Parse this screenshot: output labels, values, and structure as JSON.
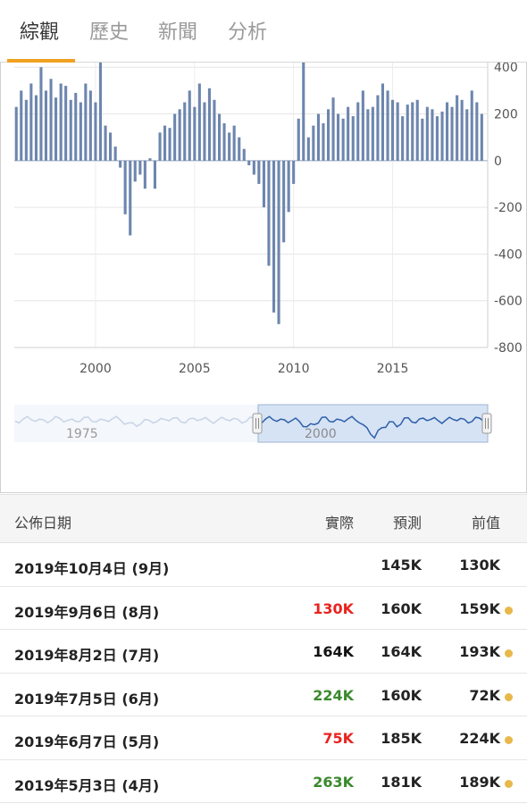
{
  "tabs": [
    "綜觀",
    "歷史",
    "新聞",
    "分析"
  ],
  "colors": {
    "accent": "#f0a020",
    "bar": "#6d86ae",
    "red": "#e8231f",
    "green": "#3a8a2c",
    "dot": "#e8b84a"
  },
  "chart_data": {
    "type": "bar",
    "yaxis_ticks": [
      "400",
      "200",
      "0",
      "-200",
      "-400",
      "-600",
      "-800"
    ],
    "ylim": [
      -800,
      420
    ],
    "xaxis_ticks": [
      "2000",
      "2005",
      "2010",
      "2015"
    ],
    "xlim": [
      1995.9,
      2019.8
    ],
    "navigator_labels": [
      "1975",
      "2000"
    ],
    "series": [
      {
        "x": [
          1996.0,
          1996.25,
          1996.5,
          1996.75,
          1997.0,
          1997.25,
          1997.5,
          1997.75,
          1998.0,
          1998.25,
          1998.5,
          1998.75,
          1999.0,
          1999.25,
          1999.5,
          1999.75,
          2000.0,
          2000.25,
          2000.5,
          2000.75,
          2001.0,
          2001.25,
          2001.5,
          2001.75,
          2002.0,
          2002.25,
          2002.5,
          2002.75,
          2003.0,
          2003.25,
          2003.5,
          2003.75,
          2004.0,
          2004.25,
          2004.5,
          2004.75,
          2005.0,
          2005.25,
          2005.5,
          2005.75,
          2006.0,
          2006.25,
          2006.5,
          2006.75,
          2007.0,
          2007.25,
          2007.5,
          2007.75,
          2008.0,
          2008.25,
          2008.5,
          2008.75,
          2009.0,
          2009.25,
          2009.5,
          2009.75,
          2010.0,
          2010.25,
          2010.5,
          2010.75,
          2011.0,
          2011.25,
          2011.5,
          2011.75,
          2012.0,
          2012.25,
          2012.5,
          2012.75,
          2013.0,
          2013.25,
          2013.5,
          2013.75,
          2014.0,
          2014.25,
          2014.5,
          2014.75,
          2015.0,
          2015.25,
          2015.5,
          2015.75,
          2016.0,
          2016.25,
          2016.5,
          2016.75,
          2017.0,
          2017.25,
          2017.5,
          2017.75,
          2018.0,
          2018.25,
          2018.5,
          2018.75,
          2019.0,
          2019.25,
          2019.5
        ],
        "values": [
          230,
          300,
          260,
          330,
          280,
          400,
          300,
          350,
          270,
          330,
          320,
          260,
          290,
          250,
          330,
          300,
          250,
          420,
          150,
          120,
          60,
          -30,
          -230,
          -320,
          -90,
          -60,
          -120,
          10,
          -120,
          120,
          150,
          140,
          200,
          220,
          250,
          300,
          230,
          330,
          250,
          310,
          260,
          200,
          160,
          120,
          150,
          100,
          50,
          -20,
          -60,
          -100,
          -200,
          -450,
          -650,
          -700,
          -350,
          -220,
          -100,
          180,
          420,
          100,
          150,
          200,
          160,
          220,
          270,
          200,
          180,
          230,
          190,
          250,
          300,
          220,
          230,
          280,
          330,
          300,
          260,
          250,
          190,
          240,
          250,
          260,
          180,
          230,
          220,
          190,
          210,
          250,
          230,
          280,
          260,
          220,
          300,
          250,
          200
        ]
      }
    ]
  },
  "table": {
    "headers": {
      "date": "公佈日期",
      "actual": "實際",
      "forecast": "預測",
      "previous": "前值"
    },
    "rows": [
      {
        "date": "2019年10月4日 (9月)",
        "actual": "",
        "actual_color": "#222222",
        "forecast": "145K",
        "previous": "130K",
        "dot": false
      },
      {
        "date": "2019年9月6日 (8月)",
        "actual": "130K",
        "actual_color": "#e8231f",
        "forecast": "160K",
        "previous": "159K",
        "dot": true
      },
      {
        "date": "2019年8月2日 (7月)",
        "actual": "164K",
        "actual_color": "#111111",
        "forecast": "164K",
        "previous": "193K",
        "dot": true
      },
      {
        "date": "2019年7月5日 (6月)",
        "actual": "224K",
        "actual_color": "#3a8a2c",
        "forecast": "160K",
        "previous": "72K",
        "dot": true
      },
      {
        "date": "2019年6月7日 (5月)",
        "actual": "75K",
        "actual_color": "#e8231f",
        "forecast": "185K",
        "previous": "224K",
        "dot": true
      },
      {
        "date": "2019年5月3日 (4月)",
        "actual": "263K",
        "actual_color": "#3a8a2c",
        "forecast": "181K",
        "previous": "189K",
        "dot": true
      }
    ]
  }
}
